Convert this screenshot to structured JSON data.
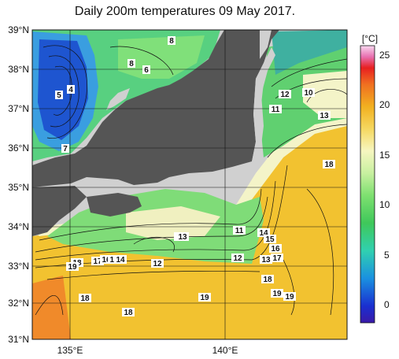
{
  "title": "Daily 200m temperatures 09 May 2017.",
  "map": {
    "lat_ticks": [
      "39°N",
      "38°N",
      "37°N",
      "36°N",
      "35°N",
      "34°N",
      "33°N",
      "32°N",
      "31°N"
    ],
    "lon_ticks": [
      "135°E",
      "140°E"
    ]
  },
  "colorbar": {
    "unit": "[°C]",
    "ticks": [
      "25",
      "20",
      "15",
      "10",
      "5",
      "0"
    ]
  },
  "contour_labels": [
    "8",
    "8",
    "6",
    "5",
    "4",
    "7",
    "12",
    "10",
    "11",
    "13",
    "18",
    "11",
    "14",
    "15",
    "16",
    "17",
    "13",
    "12",
    "13",
    "12",
    "13",
    "18",
    "19",
    "19",
    "18",
    "19",
    "18",
    "17",
    "16",
    "15",
    "14",
    "18",
    "19"
  ],
  "colors": {
    "land": "#555555",
    "ocean_bg": "#d9d9d9",
    "cold": "#1a3fc0",
    "cool": "#3ec88a",
    "mild": "#8fe08a",
    "warm": "#f2c230",
    "hot": "#f08a2a",
    "pale": "#f4f4d0"
  }
}
